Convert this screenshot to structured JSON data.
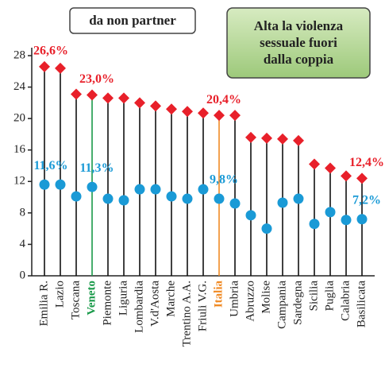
{
  "chart_data": {
    "type": "lollipop",
    "title": "da non partner",
    "annotation": [
      "Alta la violenza",
      "sessuale fuori",
      "dalla coppia"
    ],
    "categories": [
      "Emilia R.",
      "Lazio",
      "Toscana",
      "Veneto",
      "Piemonte",
      "Liguria",
      "Lombardia",
      "V.d'Aosta",
      "Marche",
      "Trentino A.A.",
      "Friuli V.G.",
      "Italia",
      "Umbria",
      "Abruzzo",
      "Molise",
      "Campania",
      "Sardegna",
      "Sicilia",
      "Puglia",
      "Calabria",
      "Basilicata"
    ],
    "category_colors": [
      null,
      null,
      null,
      "#1a9a4a",
      null,
      null,
      null,
      null,
      null,
      null,
      null,
      "#f08a24",
      null,
      null,
      null,
      null,
      null,
      null,
      null,
      null,
      null
    ],
    "series": [
      {
        "color": "#e8202a",
        "marker": "diamond",
        "values": [
          26.6,
          26.4,
          23.1,
          23.0,
          22.6,
          22.6,
          22.0,
          21.6,
          21.2,
          20.9,
          20.7,
          20.4,
          20.4,
          17.6,
          17.5,
          17.4,
          17.2,
          14.2,
          13.7,
          12.7,
          12.4
        ],
        "value_labels": [
          "26,6%",
          null,
          null,
          "23,0%",
          null,
          null,
          null,
          null,
          null,
          null,
          null,
          "20,4%",
          null,
          null,
          null,
          null,
          null,
          null,
          null,
          null,
          "12,4%"
        ]
      },
      {
        "color": "#1a9ad6",
        "marker": "circle",
        "values": [
          11.6,
          11.6,
          10.1,
          11.3,
          9.8,
          9.6,
          11.0,
          11.0,
          10.1,
          9.8,
          11.0,
          9.8,
          9.2,
          7.7,
          6.0,
          9.3,
          9.8,
          6.6,
          8.1,
          7.1,
          7.2
        ],
        "value_labels": [
          "11,6%",
          null,
          null,
          "11,3%",
          null,
          null,
          null,
          null,
          null,
          null,
          null,
          "9,8%",
          null,
          null,
          null,
          null,
          null,
          null,
          null,
          null,
          "7,2%"
        ]
      }
    ],
    "ylim": [
      0,
      28
    ],
    "yticks": [
      0,
      4,
      8,
      12,
      16,
      20,
      24,
      28
    ]
  }
}
